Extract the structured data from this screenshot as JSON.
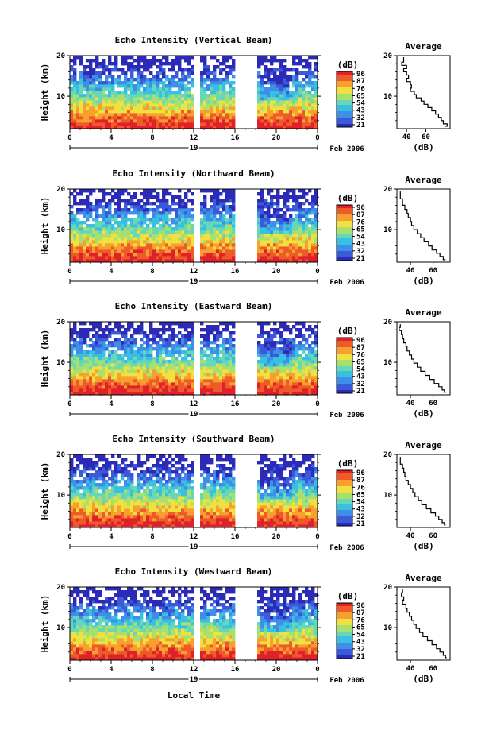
{
  "chart_data": [
    {
      "type": "heatmap",
      "title": "Echo Intensity (Vertical Beam)",
      "ylabel": "Height (km)",
      "ylim": [
        2,
        20
      ],
      "yticks": [
        20,
        10
      ],
      "xlim": [
        0,
        24
      ],
      "xticks": [
        "0",
        "4",
        "8",
        "12",
        "16",
        "20",
        "0"
      ],
      "date_label": "19",
      "month_label": "Feb 2006",
      "colorbar": {
        "unit": "(dB)",
        "ticks": [
          "96",
          "87",
          "76",
          "65",
          "54",
          "43",
          "32",
          "21"
        ]
      },
      "profile": {
        "title": "Average",
        "xlabel": "(dB)",
        "xticks": [
          "40",
          "60"
        ],
        "yticks": [
          "20",
          "10"
        ],
        "xlim": [
          30,
          85
        ],
        "points": [
          [
            37,
            19.6
          ],
          [
            35,
            18.4
          ],
          [
            40,
            17.6
          ],
          [
            37,
            16.8
          ],
          [
            40,
            16.0
          ],
          [
            42,
            15.2
          ],
          [
            40,
            14.4
          ],
          [
            44,
            13.6
          ],
          [
            45,
            12.8
          ],
          [
            44,
            12.0
          ],
          [
            48,
            11.2
          ],
          [
            50,
            10.4
          ],
          [
            55,
            9.6
          ],
          [
            58,
            8.8
          ],
          [
            62,
            8.0
          ],
          [
            66,
            7.2
          ],
          [
            70,
            6.4
          ],
          [
            73,
            5.6
          ],
          [
            76,
            4.8
          ],
          [
            78,
            4.0
          ],
          [
            82,
            3.2
          ],
          [
            80,
            2.6
          ]
        ]
      }
    },
    {
      "type": "heatmap",
      "title": "Echo Intensity (Northward Beam)",
      "ylabel": "Height (km)",
      "ylim": [
        2,
        20
      ],
      "yticks": [
        20,
        10
      ],
      "xlim": [
        0,
        24
      ],
      "xticks": [
        "0",
        "4",
        "8",
        "12",
        "16",
        "20",
        "0"
      ],
      "date_label": "19",
      "month_label": "Feb 2006",
      "colorbar": {
        "unit": "(dB)",
        "ticks": [
          "96",
          "87",
          "76",
          "65",
          "54",
          "43",
          "32",
          "21"
        ]
      },
      "profile": {
        "title": "Average",
        "xlabel": "(dB)",
        "xticks": [
          "40",
          "60"
        ],
        "yticks": [
          "20",
          "10"
        ],
        "xlim": [
          28,
          75
        ],
        "points": [
          [
            31,
            19.4
          ],
          [
            31,
            18.6
          ],
          [
            33,
            17.6
          ],
          [
            33,
            16.8
          ],
          [
            35,
            16.0
          ],
          [
            37,
            15.0
          ],
          [
            38,
            14.0
          ],
          [
            40,
            13.0
          ],
          [
            41,
            12.0
          ],
          [
            43,
            11.0
          ],
          [
            46,
            10.0
          ],
          [
            49,
            9.0
          ],
          [
            52,
            8.0
          ],
          [
            56,
            7.0
          ],
          [
            59,
            6.0
          ],
          [
            63,
            5.0
          ],
          [
            66,
            4.2
          ],
          [
            69,
            3.4
          ],
          [
            71,
            2.6
          ]
        ]
      }
    },
    {
      "type": "heatmap",
      "title": "Echo Intensity (Eastward Beam)",
      "ylabel": "Height (km)",
      "ylim": [
        2,
        20
      ],
      "yticks": [
        20,
        10
      ],
      "xlim": [
        0,
        24
      ],
      "xticks": [
        "0",
        "4",
        "8",
        "12",
        "16",
        "20",
        "0"
      ],
      "date_label": "19",
      "month_label": "Feb 2006",
      "colorbar": {
        "unit": "(dB)",
        "ticks": [
          "96",
          "87",
          "76",
          "65",
          "54",
          "43",
          "32",
          "21"
        ]
      },
      "profile": {
        "title": "Average",
        "xlabel": "(dB)",
        "xticks": [
          "40",
          "60"
        ],
        "yticks": [
          "20",
          "10"
        ],
        "xlim": [
          28,
          75
        ],
        "points": [
          [
            31,
            19.4
          ],
          [
            30,
            18.6
          ],
          [
            32,
            17.8
          ],
          [
            33,
            16.8
          ],
          [
            34,
            15.8
          ],
          [
            36,
            14.8
          ],
          [
            37,
            13.8
          ],
          [
            39,
            12.8
          ],
          [
            41,
            11.8
          ],
          [
            43,
            10.8
          ],
          [
            46,
            9.8
          ],
          [
            49,
            8.8
          ],
          [
            53,
            7.8
          ],
          [
            57,
            6.8
          ],
          [
            61,
            5.8
          ],
          [
            65,
            4.8
          ],
          [
            68,
            4.0
          ],
          [
            70,
            3.2
          ],
          [
            71,
            2.6
          ]
        ]
      }
    },
    {
      "type": "heatmap",
      "title": "Echo Intensity (Southward Beam)",
      "ylabel": "Height (km)",
      "ylim": [
        2,
        20
      ],
      "yticks": [
        20,
        10
      ],
      "xlim": [
        0,
        24
      ],
      "xticks": [
        "0",
        "4",
        "8",
        "12",
        "16",
        "20",
        "0"
      ],
      "date_label": "19",
      "month_label": "Feb 2006",
      "colorbar": {
        "unit": "(dB)",
        "ticks": [
          "96",
          "87",
          "76",
          "65",
          "54",
          "43",
          "32",
          "21"
        ]
      },
      "profile": {
        "title": "Average",
        "xlabel": "(dB)",
        "xticks": [
          "40",
          "60"
        ],
        "yticks": [
          "20",
          "10"
        ],
        "xlim": [
          28,
          75
        ],
        "points": [
          [
            31,
            19.4
          ],
          [
            31,
            18.6
          ],
          [
            33,
            17.6
          ],
          [
            34,
            16.6
          ],
          [
            35,
            15.6
          ],
          [
            36,
            14.6
          ],
          [
            38,
            13.6
          ],
          [
            40,
            12.6
          ],
          [
            42,
            11.6
          ],
          [
            44,
            10.6
          ],
          [
            47,
            9.6
          ],
          [
            50,
            8.6
          ],
          [
            54,
            7.6
          ],
          [
            58,
            6.6
          ],
          [
            62,
            5.6
          ],
          [
            65,
            4.8
          ],
          [
            68,
            4.0
          ],
          [
            70,
            3.2
          ],
          [
            71,
            2.6
          ]
        ]
      }
    },
    {
      "type": "heatmap",
      "title": "Echo Intensity (Westward Beam)",
      "ylabel": "Height (km)",
      "ylim": [
        2,
        20
      ],
      "yticks": [
        20,
        10
      ],
      "xlim": [
        0,
        24
      ],
      "xticks": [
        "0",
        "4",
        "8",
        "12",
        "16",
        "20",
        "0"
      ],
      "date_label": "19",
      "month_label": "Feb 2006",
      "colorbar": {
        "unit": "(dB)",
        "ticks": [
          "96",
          "87",
          "76",
          "65",
          "54",
          "43",
          "32",
          "21"
        ]
      },
      "profile": {
        "title": "Average",
        "xlabel": "(dB)",
        "xticks": [
          "40",
          "60"
        ],
        "yticks": [
          "20",
          "10"
        ],
        "xlim": [
          28,
          75
        ],
        "points": [
          [
            33,
            19.4
          ],
          [
            32,
            18.6
          ],
          [
            34,
            17.6
          ],
          [
            33,
            16.8
          ],
          [
            36,
            15.8
          ],
          [
            37,
            14.8
          ],
          [
            39,
            13.8
          ],
          [
            41,
            12.8
          ],
          [
            43,
            11.8
          ],
          [
            45,
            10.8
          ],
          [
            48,
            9.8
          ],
          [
            51,
            8.8
          ],
          [
            55,
            7.8
          ],
          [
            59,
            6.8
          ],
          [
            63,
            5.8
          ],
          [
            66,
            4.8
          ],
          [
            69,
            4.0
          ],
          [
            71,
            3.2
          ],
          [
            72,
            2.6
          ]
        ]
      }
    }
  ],
  "xlabel": "Local Time",
  "colors": {
    "scale": [
      "#2b2bb8",
      "#3a5ad8",
      "#3f8ee8",
      "#39c0e0",
      "#66d8b8",
      "#a8e070",
      "#f0e040",
      "#f7a030",
      "#ef5a2a",
      "#e0202a"
    ]
  }
}
